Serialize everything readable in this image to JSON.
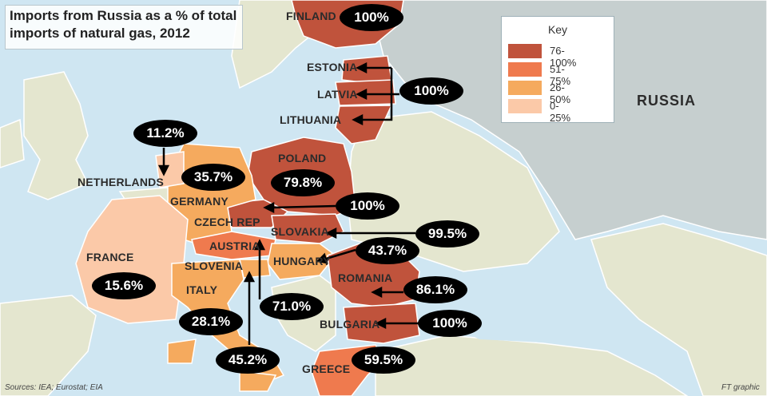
{
  "title": "Imports from Russia as a % of total imports of natural gas, 2012",
  "key": {
    "title": "Key",
    "items": [
      {
        "label": "76-100%",
        "color": "#c0533c"
      },
      {
        "label": "51-75%",
        "color": "#ef7a4e"
      },
      {
        "label": "26-50%",
        "color": "#f5aa5e"
      },
      {
        "label": "0-25%",
        "color": "#fbc9a8"
      }
    ]
  },
  "colors": {
    "sea": "#cfe6f2",
    "land_other": "#e4e6cf",
    "russia_land": "#c6cfcf",
    "dark": "#c0533c",
    "orange": "#ef7a4e",
    "light_orange": "#f5aa5e",
    "pale": "#fbc9a8"
  },
  "countries": {
    "finland": {
      "name": "FINLAND",
      "value": "100%"
    },
    "estonia": {
      "name": "ESTONIA"
    },
    "latvia": {
      "name": "LATVIA"
    },
    "lithuania": {
      "name": "LITHUANIA"
    },
    "baltics_value": "100%",
    "netherlands": {
      "name": "NETHERLANDS",
      "value": "11.2%"
    },
    "germany": {
      "name": "GERMANY",
      "value": "35.7%"
    },
    "poland": {
      "name": "POLAND",
      "value": "79.8%"
    },
    "czech": {
      "name": "CZECH REP",
      "value": "100%"
    },
    "slovakia": {
      "name": "SLOVAKIA",
      "value": "99.5%"
    },
    "austria": {
      "name": "AUSTRIA",
      "value": "71.0%"
    },
    "hungary": {
      "name": "HUNGARY",
      "value": "43.7%"
    },
    "slovenia": {
      "name": "SLOVENIA",
      "value": "45.2%"
    },
    "france": {
      "name": "FRANCE",
      "value": "15.6%"
    },
    "italy": {
      "name": "ITALY",
      "value": "28.1%"
    },
    "romania": {
      "name": "ROMANIA",
      "value": "86.1%"
    },
    "bulgaria": {
      "name": "BULGARIA",
      "value": "100%"
    },
    "greece": {
      "name": "GREECE",
      "value": "59.5%"
    },
    "russia": {
      "name": "RUSSIA"
    }
  },
  "footer": {
    "sources": "Sources: IEA; Eurostat; EIA",
    "credit": "FT graphic"
  }
}
